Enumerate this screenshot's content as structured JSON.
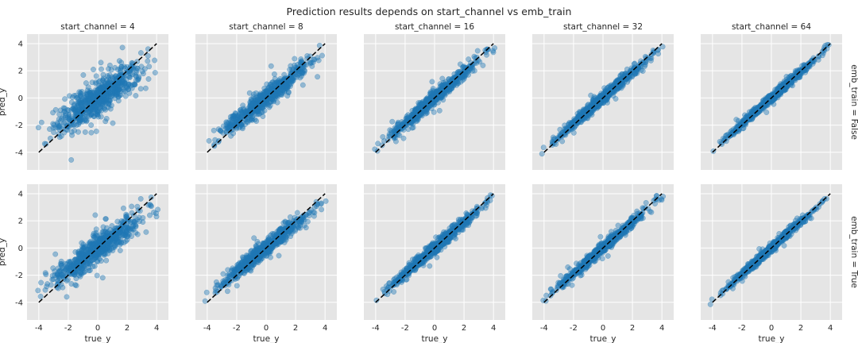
{
  "chart_data": {
    "type": "scatter",
    "title": "Prediction results depends on start_channel vs emb_train",
    "xlabel": "true_y",
    "ylabel": "pred_y",
    "xlim": [
      -4.8,
      4.8
    ],
    "ylim": [
      -5.3,
      4.7
    ],
    "xticks": [
      -4,
      -2,
      0,
      2,
      4
    ],
    "yticks": [
      -4,
      -2,
      0,
      2,
      4
    ],
    "grid": true,
    "reference_line": {
      "style": "dashed",
      "color": "#000000",
      "x": [
        -4,
        4
      ],
      "y": [
        -4,
        4
      ]
    },
    "point_color": "#1f77b4",
    "background_color": "#e5e5e5",
    "columns": [
      {
        "label": "start_channel = 4"
      },
      {
        "label": "start_channel = 8"
      },
      {
        "label": "start_channel = 16"
      },
      {
        "label": "start_channel = 32"
      },
      {
        "label": "start_channel = 64"
      }
    ],
    "rows": [
      {
        "label": "emb_train = False"
      },
      {
        "label": "emb_train = True"
      }
    ],
    "panels": [
      {
        "row": 0,
        "col": 0,
        "fit": {
          "slope": 0.72,
          "intercept": -0.05,
          "spread": 0.62
        },
        "x_range": [
          -4.2,
          4.1
        ]
      },
      {
        "row": 0,
        "col": 1,
        "fit": {
          "slope": 0.86,
          "intercept": 0.0,
          "spread": 0.36
        },
        "x_range": [
          -4.2,
          4.1
        ]
      },
      {
        "row": 0,
        "col": 2,
        "fit": {
          "slope": 0.93,
          "intercept": 0.0,
          "spread": 0.26
        },
        "x_range": [
          -4.2,
          4.1
        ]
      },
      {
        "row": 0,
        "col": 3,
        "fit": {
          "slope": 0.95,
          "intercept": 0.0,
          "spread": 0.2
        },
        "x_range": [
          -4.2,
          4.1
        ]
      },
      {
        "row": 0,
        "col": 4,
        "fit": {
          "slope": 0.97,
          "intercept": 0.0,
          "spread": 0.16
        },
        "x_range": [
          -4.2,
          4.1
        ]
      },
      {
        "row": 1,
        "col": 0,
        "fit": {
          "slope": 0.76,
          "intercept": -0.05,
          "spread": 0.5
        },
        "x_range": [
          -4.2,
          4.1
        ]
      },
      {
        "row": 1,
        "col": 1,
        "fit": {
          "slope": 0.88,
          "intercept": 0.0,
          "spread": 0.3
        },
        "x_range": [
          -4.2,
          4.1
        ]
      },
      {
        "row": 1,
        "col": 2,
        "fit": {
          "slope": 0.94,
          "intercept": 0.0,
          "spread": 0.22
        },
        "x_range": [
          -4.2,
          4.1
        ]
      },
      {
        "row": 1,
        "col": 3,
        "fit": {
          "slope": 0.95,
          "intercept": 0.0,
          "spread": 0.19
        },
        "x_range": [
          -4.2,
          4.1
        ]
      },
      {
        "row": 1,
        "col": 4,
        "fit": {
          "slope": 0.97,
          "intercept": 0.0,
          "spread": 0.15
        },
        "x_range": [
          -4.2,
          4.1
        ]
      }
    ]
  }
}
